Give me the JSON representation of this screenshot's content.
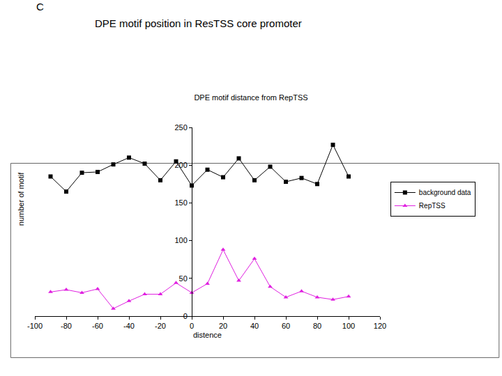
{
  "panel_label": "C",
  "heading": "DPE motif position in ResTSS core promoter",
  "chart_data": {
    "type": "line",
    "title": "DPE motif distance from RepTSS",
    "x_label": "distence",
    "y_label": "number of motif",
    "x": [
      -90,
      -80,
      -70,
      -60,
      -50,
      -40,
      -30,
      -20,
      -10,
      0,
      10,
      20,
      30,
      40,
      50,
      60,
      70,
      80,
      90,
      100
    ],
    "series": [
      {
        "name": "background data",
        "color": "#000000",
        "marker": "square",
        "values": [
          185,
          165,
          190,
          191,
          201,
          210,
          202,
          180,
          205,
          173,
          194,
          184,
          209,
          180,
          198,
          178,
          183,
          175,
          227,
          185
        ]
      },
      {
        "name": "RepTSS",
        "color": "#e020e0",
        "marker": "triangle-up",
        "values": [
          32,
          35,
          31,
          36,
          10,
          20,
          29,
          29,
          44,
          31,
          43,
          88,
          47,
          76,
          39,
          25,
          33,
          25,
          22,
          26
        ]
      }
    ],
    "xlim": [
      -100,
      120
    ],
    "xticks": [
      -100,
      -80,
      -60,
      -40,
      -20,
      0,
      20,
      40,
      60,
      80,
      100,
      120
    ],
    "ylim": [
      0,
      250
    ],
    "yticks": [
      0,
      50,
      100,
      150,
      200,
      250
    ],
    "grid": false,
    "legend": "right"
  }
}
